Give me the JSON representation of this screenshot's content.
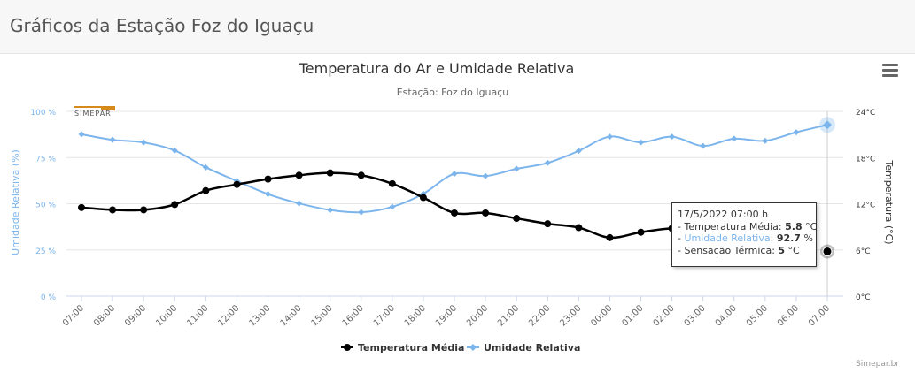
{
  "page": {
    "title": "Gráficos da Estação Foz do Iguaçu"
  },
  "credits": "Simepar.br",
  "logo_text": "SIMEPAR",
  "tooltip": {
    "title": "17/5/2022 07:00 h",
    "rows": [
      {
        "label": "Temperatura Média",
        "value": "5.8",
        "unit": " °C"
      },
      {
        "label": "Umidade Relativa",
        "value": "92.7",
        "unit": " %"
      },
      {
        "label": "Sensação Térmica",
        "value": "5",
        "unit": " °C"
      }
    ]
  },
  "chart_data": {
    "type": "line",
    "title": "Temperatura do Ar e Umidade Relativa",
    "subtitle": "Estação: Foz do Iguaçu",
    "categories": [
      "07:00",
      "08:00",
      "09:00",
      "10:00",
      "11:00",
      "12:00",
      "13:00",
      "14:00",
      "15:00",
      "16:00",
      "17:00",
      "18:00",
      "19:00",
      "20:00",
      "21:00",
      "22:00",
      "23:00",
      "00:00",
      "01:00",
      "02:00",
      "03:00",
      "04:00",
      "05:00",
      "06:00",
      "07:00"
    ],
    "y_left": {
      "label": "Umidade Relativa (%)",
      "min": 0,
      "max": 100,
      "ticks": [
        "0 %",
        "25 %",
        "50 %",
        "75 %",
        "100 %"
      ],
      "color": "#7cb5ec"
    },
    "y_right": {
      "label": "Temperatura (°C)",
      "min": 0,
      "max": 24,
      "ticks": [
        "0°C",
        "6°C",
        "12°C",
        "18°C",
        "24°C"
      ]
    },
    "series": [
      {
        "name": "Temperatura Média",
        "axis": "right",
        "color": "#000000",
        "values": [
          11.5,
          11.2,
          11.2,
          11.9,
          13.7,
          14.5,
          15.2,
          15.7,
          16.0,
          15.7,
          14.6,
          12.8,
          10.8,
          10.8,
          10.1,
          9.4,
          8.9,
          7.6,
          8.3,
          8.8,
          8.6,
          null,
          null,
          null,
          5.8
        ]
      },
      {
        "name": "Umidade Relativa",
        "axis": "left",
        "color": "#7cb5ec",
        "values": [
          87.6,
          84.6,
          83.2,
          78.8,
          69.7,
          62.3,
          55.2,
          50.2,
          46.6,
          45.4,
          48.3,
          55.4,
          66.2,
          65.0,
          68.9,
          72.1,
          78.6,
          86.3,
          83.2,
          86.3,
          81.3,
          85.2,
          84.1,
          88.7,
          92.7
        ]
      }
    ],
    "grid": true,
    "legend": "bottom-center",
    "tooltip_visible": true
  }
}
